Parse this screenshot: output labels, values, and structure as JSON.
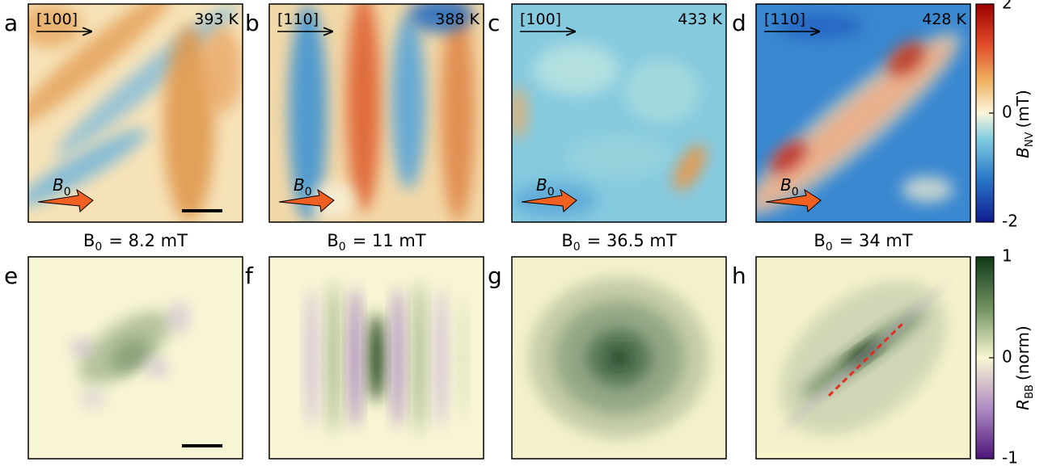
{
  "panels": [
    {
      "letter": "a",
      "direction": "[100]",
      "temperature": "393 K",
      "field_symbol": "B",
      "field_sub": "0"
    },
    {
      "letter": "b",
      "direction": "[110]",
      "temperature": "388 K",
      "field_symbol": "B",
      "field_sub": "0"
    },
    {
      "letter": "c",
      "direction": "[100]",
      "temperature": "433 K",
      "field_symbol": "B",
      "field_sub": "0"
    },
    {
      "letter": "d",
      "direction": "[110]",
      "temperature": "428 K",
      "field_symbol": "B",
      "field_sub": "0"
    },
    {
      "letter": "e"
    },
    {
      "letter": "f"
    },
    {
      "letter": "g"
    },
    {
      "letter": "h"
    }
  ],
  "captions": [
    {
      "symbol": "B",
      "sub": "0",
      "text": "= 8.2 mT"
    },
    {
      "symbol": "B",
      "sub": "0",
      "text": "= 11 mT"
    },
    {
      "symbol": "B",
      "sub": "0",
      "text": "= 36.5 mT"
    },
    {
      "symbol": "B",
      "sub": "0",
      "text": "= 34 mT"
    }
  ],
  "colorbars": [
    {
      "ticks": [
        2,
        0,
        -2
      ],
      "symbol": "B",
      "sub": "NV",
      "unit": "(mT)"
    },
    {
      "ticks": [
        1,
        0,
        -1
      ],
      "symbol": "R",
      "sub": "BB",
      "unit": "(norm)"
    }
  ]
}
